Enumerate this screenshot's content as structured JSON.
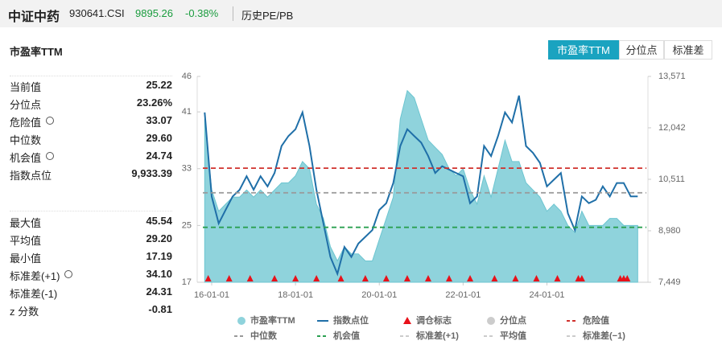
{
  "header": {
    "name": "中证中药",
    "code": "930641.CSI",
    "price": "9895.26",
    "change": "-0.38%",
    "tab": "历史PE/PB"
  },
  "panel_title": "市盈率TTM",
  "buttons": [
    {
      "label": "市盈率TTM",
      "active": true
    },
    {
      "label": "分位点",
      "active": false
    },
    {
      "label": "标准差",
      "active": false
    }
  ],
  "stats": [
    [
      {
        "label": "当前值",
        "value": "25.22",
        "gear": false
      },
      {
        "label": "分位点",
        "value": "23.26%",
        "gear": false
      },
      {
        "label": "危险值",
        "value": "33.07",
        "gear": true
      },
      {
        "label": "中位数",
        "value": "29.60",
        "gear": false
      },
      {
        "label": "机会值",
        "value": "24.74",
        "gear": true
      },
      {
        "label": "指数点位",
        "value": "9,933.39",
        "gear": false
      }
    ],
    [
      {
        "label": "最大值",
        "value": "45.54",
        "gear": false
      },
      {
        "label": "平均值",
        "value": "29.20",
        "gear": false
      },
      {
        "label": "最小值",
        "value": "17.19",
        "gear": false
      },
      {
        "label": "标准差(+1)",
        "value": "34.10",
        "gear": true
      },
      {
        "label": "标准差(-1)",
        "value": "24.31",
        "gear": false
      },
      {
        "label": "z 分数",
        "value": "-0.81",
        "gear": false
      }
    ]
  ],
  "chart_data": {
    "type": "line",
    "x": [
      "15-11-01",
      "16-01-01",
      "16-03-01",
      "16-05-01",
      "16-07-01",
      "16-09-01",
      "16-11-01",
      "17-01-01",
      "17-03-01",
      "17-05-01",
      "17-07-01",
      "17-09-01",
      "17-11-01",
      "18-01-01",
      "18-03-01",
      "18-05-01",
      "18-07-01",
      "18-09-01",
      "18-11-01",
      "19-01-01",
      "19-03-01",
      "19-05-01",
      "19-07-01",
      "19-09-01",
      "19-11-01",
      "20-01-01",
      "20-03-01",
      "20-05-01",
      "20-07-01",
      "20-09-01",
      "20-11-01",
      "21-01-01",
      "21-03-01",
      "21-05-01",
      "21-07-01",
      "21-09-01",
      "21-11-01",
      "22-01-01",
      "22-03-01",
      "22-05-01",
      "22-07-01",
      "22-09-01",
      "22-11-01",
      "23-01-01",
      "23-03-01",
      "23-05-01",
      "23-07-01",
      "23-09-01",
      "23-11-01",
      "24-01-01",
      "24-03-01",
      "24-05-01",
      "24-07-01",
      "24-09-01",
      "24-11-01",
      "25-01-01",
      "25-03-01",
      "25-05-01",
      "25-07-01",
      "25-09-01",
      "25-11-01",
      "26-01-01",
      "26-03-01"
    ],
    "xlim": [
      "15-10-15",
      "26-05-15"
    ],
    "xticks": [
      "16-01-01",
      "18-01-01",
      "20-01-01",
      "22-01-01",
      "24-01-01"
    ],
    "ylim": [
      17,
      46
    ],
    "yticks": [
      17,
      25,
      33,
      41,
      46
    ],
    "y2lim": [
      7449,
      13571
    ],
    "y2ticks": [
      {
        "value": 7449,
        "label": "7,449"
      },
      {
        "value": 8980,
        "label": "8,980"
      },
      {
        "value": 10511,
        "label": "10,511"
      },
      {
        "value": 12042,
        "label": "12,042"
      },
      {
        "value": 13571,
        "label": "13,571"
      }
    ],
    "series": [
      {
        "name": "市盈率TTM",
        "color": "#8fd3dc",
        "style": "area",
        "values": [
          40,
          30,
          27,
          28,
          29,
          29,
          30,
          29,
          30,
          29,
          30,
          31,
          31,
          32,
          34,
          33,
          28,
          26,
          22,
          20,
          22,
          21,
          21,
          20,
          20,
          23,
          26,
          29,
          40,
          44,
          43,
          40,
          37,
          36,
          35,
          33,
          32,
          33,
          30,
          28,
          32,
          29,
          33,
          37,
          34,
          34,
          31,
          30,
          29,
          27,
          28,
          27,
          25,
          24,
          27,
          25,
          25,
          25,
          26,
          26,
          25,
          25,
          25
        ]
      },
      {
        "name": "指数点位",
        "color": "#1f6fa8",
        "style": "line",
        "axis": "y2",
        "values": [
          12500,
          10000,
          9200,
          9600,
          10000,
          10200,
          10600,
          10200,
          10600,
          10300,
          10700,
          11500,
          11800,
          12000,
          12500,
          11500,
          10200,
          9200,
          8200,
          7700,
          8500,
          8200,
          8600,
          8800,
          9000,
          9600,
          9800,
          10400,
          11500,
          12000,
          11800,
          11600,
          11200,
          10700,
          10900,
          10800,
          10700,
          10600,
          9800,
          10000,
          11500,
          11200,
          11800,
          12500,
          12200,
          13000,
          11500,
          11300,
          11000,
          10300,
          10500,
          10700,
          9500,
          9000,
          10000,
          9800,
          9900,
          10300,
          10000,
          10400,
          10400,
          10000,
          10000
        ]
      }
    ],
    "markers": {
      "name": "调仓标志",
      "color": "#e8111a",
      "x": [
        "15-12-01",
        "16-06-01",
        "16-12-01",
        "17-07-01",
        "18-01-01",
        "18-07-01",
        "19-02-01",
        "19-09-01",
        "20-03-01",
        "20-09-01",
        "21-03-01",
        "21-09-01",
        "22-03-01",
        "22-10-01",
        "23-04-01",
        "23-10-01",
        "24-04-01",
        "24-10-01",
        "24-11-01",
        "25-10-01",
        "25-11-01",
        "25-12-01"
      ]
    },
    "ref_lines": [
      {
        "name": "危险值",
        "color": "#d0312d",
        "value": 33.07
      },
      {
        "name": "中位数",
        "color": "#999999",
        "value": 29.6
      },
      {
        "name": "机会值",
        "color": "#2aa051",
        "value": 24.74
      }
    ],
    "inactive_legend": [
      {
        "name": "分位点",
        "symbol": "dot"
      },
      {
        "name": "标准差(+1)",
        "symbol": "dash"
      },
      {
        "name": "平均值",
        "symbol": "dash"
      },
      {
        "name": "标准差(−1)",
        "symbol": "dash"
      }
    ],
    "inactive_color": "#cccccc"
  }
}
